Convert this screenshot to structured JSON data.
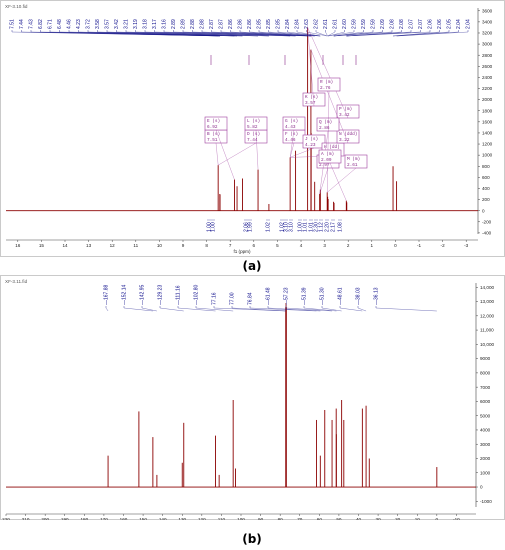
{
  "chart_data": [
    {
      "type": "line",
      "file_label": "XF-3.10.fid",
      "xlabel": "f1 (ppm)",
      "x_ticks": [
        "16",
        "15",
        "14",
        "13",
        "12",
        "11",
        "10",
        "9",
        "8",
        "7",
        "6",
        "5",
        "4",
        "3",
        "2",
        "1",
        "0",
        "-1",
        "-2",
        "-3"
      ],
      "y_ticks": [
        "3600",
        "3400",
        "3200",
        "3000",
        "2800",
        "2600",
        "2400",
        "2200",
        "2000",
        "1800",
        "1600",
        "1400",
        "1200",
        "1000",
        "800",
        "600",
        "400",
        "200",
        "0",
        "-200",
        "-400"
      ],
      "xlim": [
        16.5,
        -3.5
      ],
      "ylim": [
        -420,
        3650
      ],
      "peak_labels": [
        "7.51",
        "7.44",
        "7.43",
        "6.82",
        "6.71",
        "6.48",
        "4.46",
        "4.23",
        "3.72",
        "3.58",
        "3.57",
        "3.42",
        "3.21",
        "3.19",
        "3.18",
        "3.17",
        "3.16",
        "2.89",
        "2.89",
        "2.88",
        "2.88",
        "2.87",
        "2.87",
        "2.86",
        "2.86",
        "2.86",
        "2.85",
        "2.85",
        "2.85",
        "2.84",
        "2.84",
        "2.63",
        "2.62",
        "2.61",
        "2.61",
        "2.60",
        "2.59",
        "2.59",
        "2.59",
        "2.09",
        "2.08",
        "2.08",
        "2.07",
        "2.07",
        "2.06",
        "2.06",
        "2.05",
        "2.04",
        "2.04"
      ],
      "spectrum_peaks": [
        {
          "ppm": 7.51,
          "intensity": 820
        },
        {
          "ppm": 7.44,
          "intensity": 300
        },
        {
          "ppm": 7.43,
          "intensity": 290
        },
        {
          "ppm": 6.82,
          "intensity": 560
        },
        {
          "ppm": 6.71,
          "intensity": 440
        },
        {
          "ppm": 6.48,
          "intensity": 580
        },
        {
          "ppm": 5.82,
          "intensity": 740
        },
        {
          "ppm": 5.36,
          "intensity": 120
        },
        {
          "ppm": 4.46,
          "intensity": 960
        },
        {
          "ppm": 4.23,
          "intensity": 1080
        },
        {
          "ppm": 3.72,
          "intensity": 3300
        },
        {
          "ppm": 3.58,
          "intensity": 2900
        },
        {
          "ppm": 3.57,
          "intensity": 1400
        },
        {
          "ppm": 3.42,
          "intensity": 520
        },
        {
          "ppm": 3.21,
          "intensity": 300
        },
        {
          "ppm": 3.18,
          "intensity": 380
        },
        {
          "ppm": 2.89,
          "intensity": 330
        },
        {
          "ppm": 2.87,
          "intensity": 250
        },
        {
          "ppm": 2.85,
          "intensity": 210
        },
        {
          "ppm": 2.62,
          "intensity": 160
        },
        {
          "ppm": 2.6,
          "intensity": 140
        },
        {
          "ppm": 2.08,
          "intensity": 180
        },
        {
          "ppm": 2.06,
          "intensity": 150
        },
        {
          "ppm": 0.1,
          "intensity": 800
        },
        {
          "ppm": -0.05,
          "intensity": 530
        }
      ],
      "integral_labels": [
        "1.00",
        "1.00",
        "2.06",
        "1.99",
        "1.02",
        "1.02",
        "3.10",
        "3.10",
        "1.00",
        "1.01",
        "1.01",
        "2.30",
        "1.12",
        "2.20",
        "2.17",
        "1.08"
      ],
      "multiplets": [
        {
          "label": "B (s)",
          "value": "7.51"
        },
        {
          "label": "D (s)",
          "value": "7.44"
        },
        {
          "label": "E (s)",
          "value": "6.92"
        },
        {
          "label": "L (s)",
          "value": "5.82"
        },
        {
          "label": "F (s)",
          "value": "4.46"
        },
        {
          "label": "G (s)",
          "value": "4.43"
        },
        {
          "label": "J (s)",
          "value": "4.23"
        },
        {
          "label": "H (dd)",
          "value": "4.08"
        },
        {
          "label": "K (s)",
          "value": "3.57"
        },
        {
          "label": "P (m)",
          "value": "3.42"
        },
        {
          "label": "N (ddd)",
          "value": "3.22"
        },
        {
          "label": "O (ddd)",
          "value": "2.97"
        },
        {
          "label": "Q (m)",
          "value": "2.86"
        },
        {
          "label": "M (m)",
          "value": "2.61"
        },
        {
          "label": "R (m)",
          "value": "2.76"
        },
        {
          "label": "A (m)",
          "value": "2.09"
        }
      ]
    },
    {
      "type": "line",
      "file_label": "XF-3.11.fid",
      "xlabel": "f1 (ppm)",
      "x_ticks": [
        "220",
        "210",
        "200",
        "190",
        "180",
        "170",
        "160",
        "150",
        "140",
        "130",
        "120",
        "110",
        "100",
        "90",
        "80",
        "70",
        "60",
        "50",
        "40",
        "30",
        "20",
        "10",
        "0",
        "-10"
      ],
      "y_ticks": [
        "14,000",
        "13,000",
        "12,000",
        "11,000",
        "10,000",
        "9000",
        "8000",
        "7000",
        "6000",
        "5000",
        "4000",
        "3000",
        "2000",
        "1000",
        "0",
        "-1000"
      ],
      "xlim": [
        220,
        -20
      ],
      "ylim": [
        -1400,
        14300
      ],
      "peak_labels": [
        "—167.88",
        "—152.14",
        "—142.95",
        "—129.23",
        "—111.16",
        "—102.80",
        "77.16",
        "77.00",
        "76.84",
        "—61.48",
        "—57.23",
        "—51.39",
        "—51.30",
        "—48.61",
        "—38.03",
        "—36.13"
      ],
      "spectrum_peaks": [
        {
          "ppm": 167.88,
          "intensity": 2200
        },
        {
          "ppm": 152.14,
          "intensity": 5300
        },
        {
          "ppm": 145.0,
          "intensity": 3500
        },
        {
          "ppm": 142.95,
          "intensity": 850
        },
        {
          "ppm": 130.0,
          "intensity": 1700
        },
        {
          "ppm": 129.23,
          "intensity": 4500
        },
        {
          "ppm": 113.0,
          "intensity": 3600
        },
        {
          "ppm": 111.16,
          "intensity": 850
        },
        {
          "ppm": 104.0,
          "intensity": 6100
        },
        {
          "ppm": 102.8,
          "intensity": 1300
        },
        {
          "ppm": 77.16,
          "intensity": 12600
        },
        {
          "ppm": 77.0,
          "intensity": 12900
        },
        {
          "ppm": 76.84,
          "intensity": 12600
        },
        {
          "ppm": 61.48,
          "intensity": 4700
        },
        {
          "ppm": 59.5,
          "intensity": 2200
        },
        {
          "ppm": 57.23,
          "intensity": 5400
        },
        {
          "ppm": 53.5,
          "intensity": 4700
        },
        {
          "ppm": 51.39,
          "intensity": 5500
        },
        {
          "ppm": 51.3,
          "intensity": 3700
        },
        {
          "ppm": 48.61,
          "intensity": 6100
        },
        {
          "ppm": 47.5,
          "intensity": 4700
        },
        {
          "ppm": 38.03,
          "intensity": 5500
        },
        {
          "ppm": 36.13,
          "intensity": 5700
        },
        {
          "ppm": 34.5,
          "intensity": 2000
        },
        {
          "ppm": 0.0,
          "intensity": 1400
        }
      ]
    }
  ],
  "panel_labels": [
    "(a)",
    "(b)"
  ]
}
